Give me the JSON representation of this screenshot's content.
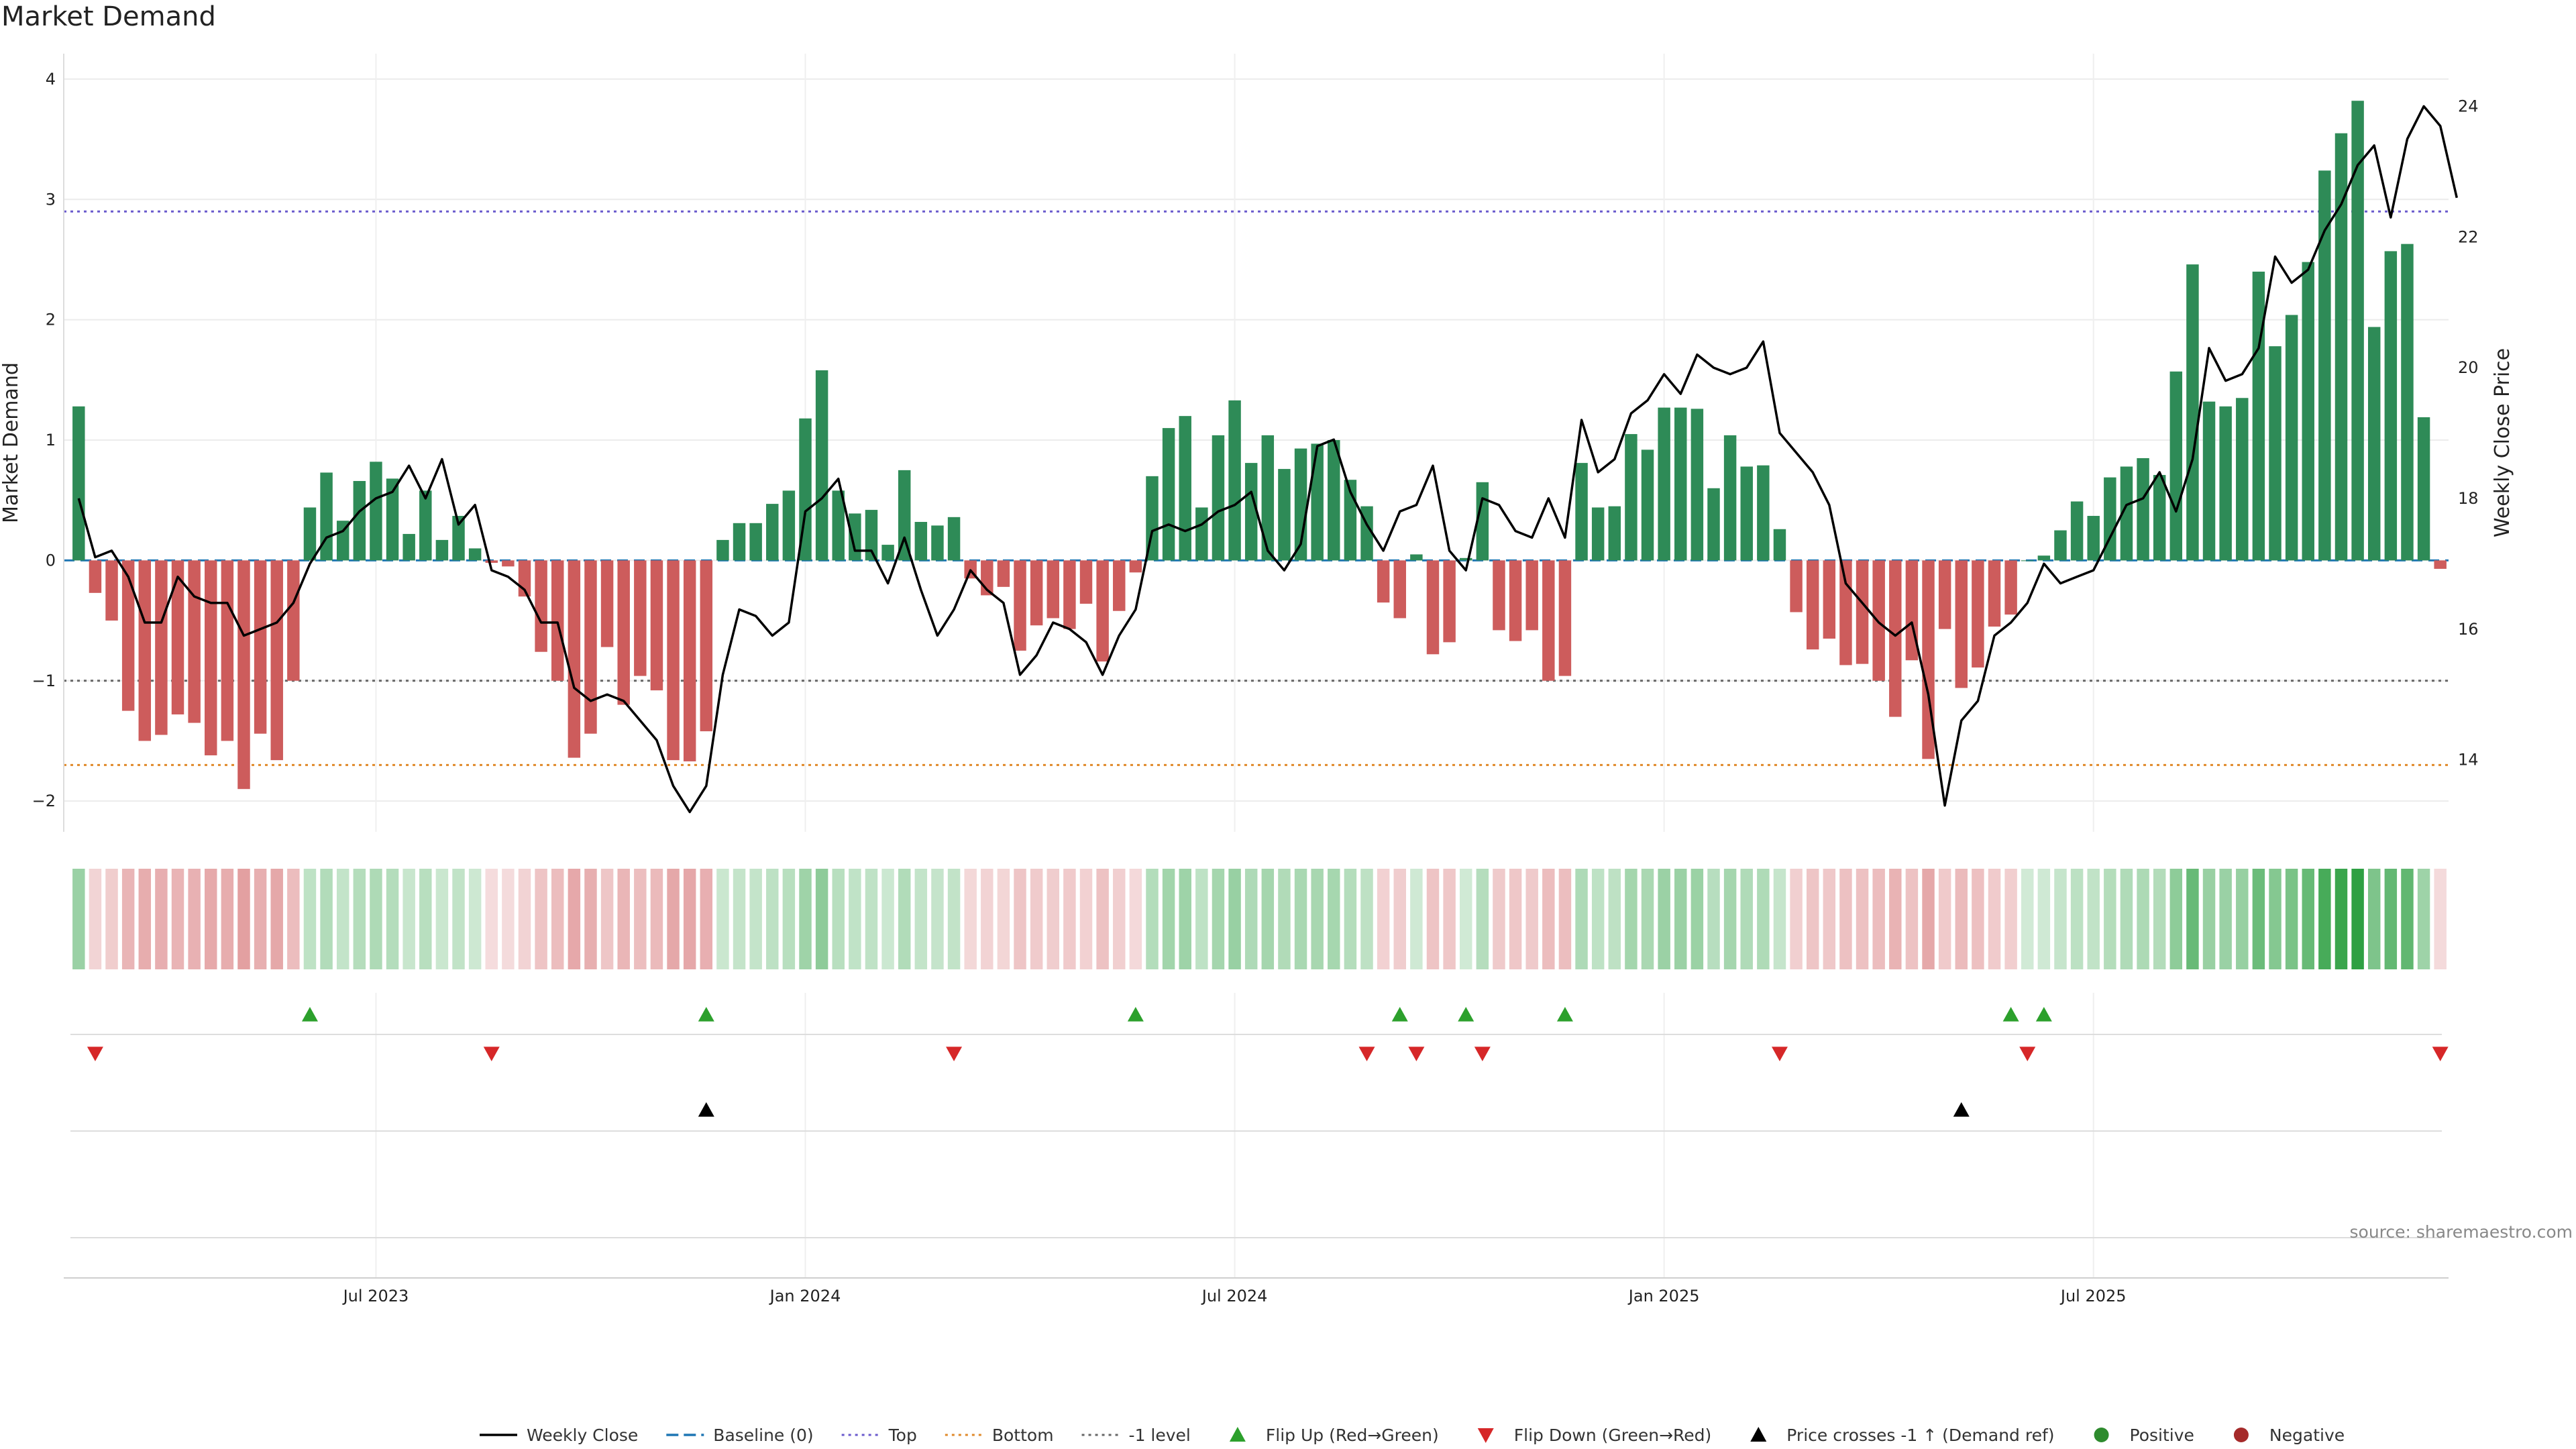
{
  "chart_data": {
    "type": "bar",
    "title": "Market Demand",
    "ylabel": "Market Demand",
    "y2label": "Weekly Close Price",
    "ylim": [
      -2.2,
      4.1
    ],
    "y2lim": [
      13.0,
      24.6
    ],
    "yticks": [
      "4",
      "3",
      "2",
      "1",
      "0",
      "−1",
      "−2"
    ],
    "y2ticks": [
      "24",
      "22",
      "20",
      "18",
      "16",
      "14"
    ],
    "xticks": [
      "Jul 2023",
      "Jan 2024",
      "Jul 2024",
      "Jan 2025",
      "Jul 2025"
    ],
    "grid": true,
    "legend_position": "bottom",
    "reference_lines": {
      "top": 2.9,
      "bottom": -1.7,
      "minus_one": -1.0,
      "baseline": 0
    },
    "source": "source: sharemaestro.com",
    "colors": {
      "positive": "#2e8b57",
      "negative": "#cd5c5c",
      "price": "#000000",
      "flip_up": "#2ca02c",
      "flip_down": "#d62728",
      "top_line": "#6a5acd",
      "bottom_line": "#e08a2b",
      "baseline": "#1f77b4"
    },
    "series": [
      {
        "name": "Market Demand",
        "values": [
          1.28,
          -0.27,
          -0.5,
          -1.25,
          -1.5,
          -1.45,
          -1.28,
          -1.35,
          -1.62,
          -1.5,
          -1.9,
          -1.44,
          -1.66,
          -1.0,
          0.44,
          0.73,
          0.33,
          0.66,
          0.82,
          0.68,
          0.22,
          0.58,
          0.17,
          0.37,
          0.1,
          -0.02,
          -0.05,
          -0.3,
          -0.76,
          -1.0,
          -1.64,
          -1.44,
          -0.72,
          -1.2,
          -0.96,
          -1.08,
          -1.66,
          -1.67,
          -1.42,
          0.17,
          0.31,
          0.31,
          0.47,
          0.58,
          1.18,
          1.58,
          0.58,
          0.39,
          0.42,
          0.13,
          0.75,
          0.32,
          0.29,
          0.36,
          -0.15,
          -0.29,
          -0.22,
          -0.75,
          -0.54,
          -0.48,
          -0.57,
          -0.36,
          -0.84,
          -0.42,
          -0.1,
          0.7,
          1.1,
          1.2,
          0.44,
          1.04,
          1.33,
          0.81,
          1.04,
          0.76,
          0.93,
          0.97,
          1.0,
          0.67,
          0.45,
          -0.35,
          -0.48,
          0.05,
          -0.78,
          -0.68,
          0.02,
          0.65,
          -0.58,
          -0.67,
          -0.58,
          -1.0,
          -0.96,
          0.81,
          0.44,
          0.45,
          1.05,
          0.92,
          1.27,
          1.27,
          1.26,
          0.6,
          1.04,
          0.78,
          0.79,
          0.26,
          -0.43,
          -0.74,
          -0.65,
          -0.87,
          -0.86,
          -1.0,
          -1.3,
          -0.83,
          -1.65,
          -0.57,
          -1.06,
          -0.89,
          -0.55,
          -0.45,
          0.0,
          0.04,
          0.25,
          0.49,
          0.37,
          0.69,
          0.78,
          0.85,
          0.71,
          1.57,
          2.46,
          1.32,
          1.28,
          1.35,
          2.4,
          1.78,
          2.04,
          2.48,
          3.24,
          3.55,
          3.82,
          1.94,
          2.57,
          2.63,
          1.19,
          -0.07
        ]
      },
      {
        "name": "Weekly Close",
        "values": [
          18.0,
          17.1,
          17.2,
          16.8,
          16.1,
          16.1,
          16.8,
          16.5,
          16.4,
          16.4,
          15.9,
          16.0,
          16.1,
          16.4,
          17.0,
          17.4,
          17.5,
          17.8,
          18.0,
          18.1,
          18.5,
          18.0,
          18.6,
          17.6,
          17.9,
          16.9,
          16.8,
          16.6,
          16.1,
          16.1,
          15.1,
          14.9,
          15.0,
          14.9,
          14.6,
          14.3,
          13.6,
          13.2,
          13.6,
          15.3,
          16.3,
          16.2,
          15.9,
          16.1,
          17.8,
          18.0,
          18.3,
          17.2,
          17.2,
          16.7,
          17.4,
          16.6,
          15.9,
          16.3,
          16.9,
          16.6,
          16.4,
          15.3,
          15.6,
          16.1,
          16.0,
          15.8,
          15.3,
          15.9,
          16.3,
          17.5,
          17.6,
          17.5,
          17.6,
          17.8,
          17.9,
          18.1,
          17.2,
          16.9,
          17.3,
          18.8,
          18.9,
          18.1,
          17.6,
          17.2,
          17.8,
          17.9,
          18.5,
          17.2,
          16.9,
          18.0,
          17.9,
          17.5,
          17.4,
          18.0,
          17.4,
          19.2,
          18.4,
          18.6,
          19.3,
          19.5,
          19.9,
          19.6,
          20.2,
          20.0,
          19.9,
          20.0,
          20.4,
          19.0,
          18.7,
          18.4,
          17.9,
          16.7,
          16.4,
          16.1,
          15.9,
          16.1,
          15.0,
          13.3,
          14.6,
          14.9,
          15.9,
          16.1,
          16.4,
          17.0,
          16.7,
          16.8,
          16.9,
          17.4,
          17.9,
          18.0,
          18.4,
          17.8,
          18.6,
          20.3,
          19.8,
          19.9,
          20.3,
          21.7,
          21.3,
          21.5,
          22.1,
          22.5,
          23.1,
          23.4,
          22.3,
          23.5,
          24.0,
          23.7,
          22.6
        ]
      },
      {
        "name": "Flip Up (Red→Green)",
        "indices": [
          14,
          38,
          64,
          80,
          84,
          90,
          117,
          119
        ]
      },
      {
        "name": "Flip Down (Green→Red)",
        "indices": [
          1,
          25,
          53,
          78,
          81,
          85,
          103,
          118,
          143
        ]
      },
      {
        "name": "Price crosses -1 ↑ (Demand ref)",
        "indices": [
          38,
          114
        ]
      }
    ],
    "legend": [
      {
        "label": "Weekly Close",
        "kind": "line"
      },
      {
        "label": "Baseline (0)",
        "kind": "dash"
      },
      {
        "label": "Top",
        "kind": "dotted"
      },
      {
        "label": "Bottom",
        "kind": "dotted-orange"
      },
      {
        "label": "-1 level",
        "kind": "dotted-grey"
      },
      {
        "label": "Flip Up (Red→Green)",
        "kind": "tri-up-green"
      },
      {
        "label": "Flip Down (Green→Red)",
        "kind": "tri-down-red"
      },
      {
        "label": "Price crosses -1 ↑ (Demand ref)",
        "kind": "tri-up-black"
      },
      {
        "label": "Positive",
        "kind": "dot-green"
      },
      {
        "label": "Negative",
        "kind": "dot-red"
      }
    ]
  }
}
